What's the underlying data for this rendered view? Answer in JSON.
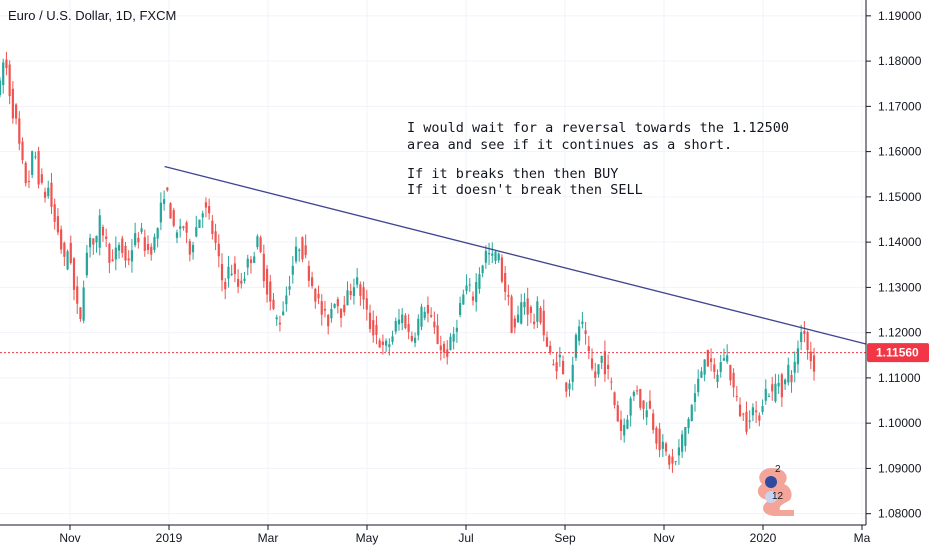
{
  "chart_data": {
    "type": "candlestick",
    "title": "Euro / U.S. Dollar, 1D, FXCM",
    "ylim": [
      1.0775,
      1.1935
    ],
    "y_ticks": [
      1.19,
      1.18,
      1.17,
      1.16,
      1.15,
      1.14,
      1.13,
      1.12,
      1.11,
      1.1,
      1.09,
      1.08
    ],
    "y_tick_labels": [
      "1.19000",
      "1.18000",
      "1.17000",
      "1.16000",
      "1.15000",
      "1.14000",
      "1.13000",
      "1.12000",
      "1.11000",
      "1.10000",
      "1.09000",
      "1.08000"
    ],
    "x_tick_labels": [
      "Nov",
      "2019",
      "Mar",
      "May",
      "Jul",
      "Sep",
      "Nov",
      "2020",
      "Ma"
    ],
    "current_price": 1.1156,
    "current_price_label": "1.11560",
    "trendline": {
      "from": [
        0.19,
        1.1567
      ],
      "to": [
        1.0,
        1.1175
      ]
    },
    "path": [
      [
        0.0,
        1.174
      ],
      [
        0.004,
        1.18
      ],
      [
        0.008,
        1.178
      ],
      [
        0.012,
        1.172
      ],
      [
        0.016,
        1.168
      ],
      [
        0.02,
        1.165
      ],
      [
        0.024,
        1.158
      ],
      [
        0.028,
        1.155
      ],
      [
        0.032,
        1.152
      ],
      [
        0.036,
        1.158
      ],
      [
        0.04,
        1.16
      ],
      [
        0.044,
        1.155
      ],
      [
        0.05,
        1.15
      ],
      [
        0.056,
        1.152
      ],
      [
        0.062,
        1.145
      ],
      [
        0.068,
        1.142
      ],
      [
        0.074,
        1.135
      ],
      [
        0.08,
        1.14
      ],
      [
        0.086,
        1.128
      ],
      [
        0.092,
        1.122
      ],
      [
        0.098,
        1.135
      ],
      [
        0.104,
        1.142
      ],
      [
        0.11,
        1.138
      ],
      [
        0.116,
        1.145
      ],
      [
        0.122,
        1.14
      ],
      [
        0.13,
        1.135
      ],
      [
        0.138,
        1.14
      ],
      [
        0.146,
        1.135
      ],
      [
        0.154,
        1.14
      ],
      [
        0.162,
        1.142
      ],
      [
        0.17,
        1.138
      ],
      [
        0.178,
        1.14
      ],
      [
        0.184,
        1.145
      ],
      [
        0.19,
        1.152
      ],
      [
        0.196,
        1.148
      ],
      [
        0.202,
        1.14
      ],
      [
        0.21,
        1.145
      ],
      [
        0.218,
        1.138
      ],
      [
        0.226,
        1.143
      ],
      [
        0.234,
        1.148
      ],
      [
        0.242,
        1.145
      ],
      [
        0.25,
        1.138
      ],
      [
        0.258,
        1.13
      ],
      [
        0.266,
        1.135
      ],
      [
        0.274,
        1.13
      ],
      [
        0.282,
        1.133
      ],
      [
        0.29,
        1.137
      ],
      [
        0.298,
        1.14
      ],
      [
        0.306,
        1.132
      ],
      [
        0.314,
        1.125
      ],
      [
        0.322,
        1.122
      ],
      [
        0.33,
        1.128
      ],
      [
        0.338,
        1.135
      ],
      [
        0.346,
        1.14
      ],
      [
        0.354,
        1.135
      ],
      [
        0.362,
        1.13
      ],
      [
        0.37,
        1.125
      ],
      [
        0.378,
        1.122
      ],
      [
        0.386,
        1.128
      ],
      [
        0.394,
        1.125
      ],
      [
        0.402,
        1.128
      ],
      [
        0.41,
        1.132
      ],
      [
        0.418,
        1.128
      ],
      [
        0.426,
        1.122
      ],
      [
        0.434,
        1.12
      ],
      [
        0.442,
        1.116
      ],
      [
        0.45,
        1.118
      ],
      [
        0.458,
        1.122
      ],
      [
        0.466,
        1.124
      ],
      [
        0.474,
        1.118
      ],
      [
        0.482,
        1.122
      ],
      [
        0.49,
        1.126
      ],
      [
        0.498,
        1.122
      ],
      [
        0.506,
        1.118
      ],
      [
        0.514,
        1.115
      ],
      [
        0.522,
        1.118
      ],
      [
        0.53,
        1.125
      ],
      [
        0.538,
        1.13
      ],
      [
        0.546,
        1.128
      ],
      [
        0.554,
        1.134
      ],
      [
        0.562,
        1.138
      ],
      [
        0.568,
        1.136
      ],
      [
        0.574,
        1.138
      ],
      [
        0.58,
        1.132
      ],
      [
        0.586,
        1.128
      ],
      [
        0.592,
        1.12
      ],
      [
        0.598,
        1.123
      ],
      [
        0.604,
        1.128
      ],
      [
        0.61,
        1.125
      ],
      [
        0.616,
        1.122
      ],
      [
        0.622,
        1.126
      ],
      [
        0.628,
        1.12
      ],
      [
        0.634,
        1.115
      ],
      [
        0.64,
        1.112
      ],
      [
        0.646,
        1.115
      ],
      [
        0.652,
        1.108
      ],
      [
        0.658,
        1.11
      ],
      [
        0.664,
        1.117
      ],
      [
        0.67,
        1.123
      ],
      [
        0.676,
        1.118
      ],
      [
        0.682,
        1.112
      ],
      [
        0.688,
        1.11
      ],
      [
        0.694,
        1.115
      ],
      [
        0.7,
        1.112
      ],
      [
        0.706,
        1.108
      ],
      [
        0.712,
        1.102
      ],
      [
        0.718,
        1.098
      ],
      [
        0.724,
        1.102
      ],
      [
        0.73,
        1.106
      ],
      [
        0.736,
        1.108
      ],
      [
        0.742,
        1.102
      ],
      [
        0.748,
        1.105
      ],
      [
        0.754,
        1.1
      ],
      [
        0.76,
        1.096
      ],
      [
        0.766,
        1.094
      ],
      [
        0.772,
        1.092
      ],
      [
        0.778,
        1.09
      ],
      [
        0.784,
        1.094
      ],
      [
        0.79,
        1.098
      ],
      [
        0.796,
        1.102
      ],
      [
        0.802,
        1.106
      ],
      [
        0.808,
        1.11
      ],
      [
        0.814,
        1.116
      ],
      [
        0.82,
        1.112
      ],
      [
        0.826,
        1.11
      ],
      [
        0.832,
        1.113
      ],
      [
        0.838,
        1.116
      ],
      [
        0.844,
        1.11
      ],
      [
        0.85,
        1.105
      ],
      [
        0.856,
        1.102
      ],
      [
        0.862,
        1.1
      ],
      [
        0.868,
        1.104
      ],
      [
        0.874,
        1.1
      ],
      [
        0.88,
        1.105
      ],
      [
        0.886,
        1.108
      ],
      [
        0.892,
        1.106
      ],
      [
        0.898,
        1.11
      ],
      [
        0.904,
        1.107
      ],
      [
        0.91,
        1.112
      ],
      [
        0.916,
        1.11
      ],
      [
        0.922,
        1.118
      ],
      [
        0.928,
        1.122
      ],
      [
        0.934,
        1.115
      ],
      [
        0.94,
        1.113
      ]
    ],
    "event_markers": [
      {
        "label": "2",
        "color": "#f3a59a"
      },
      {
        "label": "12",
        "color": "#f3a59a"
      }
    ],
    "colors": {
      "up": "#26a69a",
      "down": "#ef5350",
      "trendline": "#3f4690",
      "price_line": "#f23645",
      "axis_line": "#131722",
      "grid": "#f0f3fa"
    }
  },
  "annotation": {
    "line1": "I would wait for a reversal towards the 1.12500",
    "line2": "area and see if it continues as a short.",
    "line3": "If it breaks then then BUY",
    "line4": "If it doesn't break then SELL"
  }
}
